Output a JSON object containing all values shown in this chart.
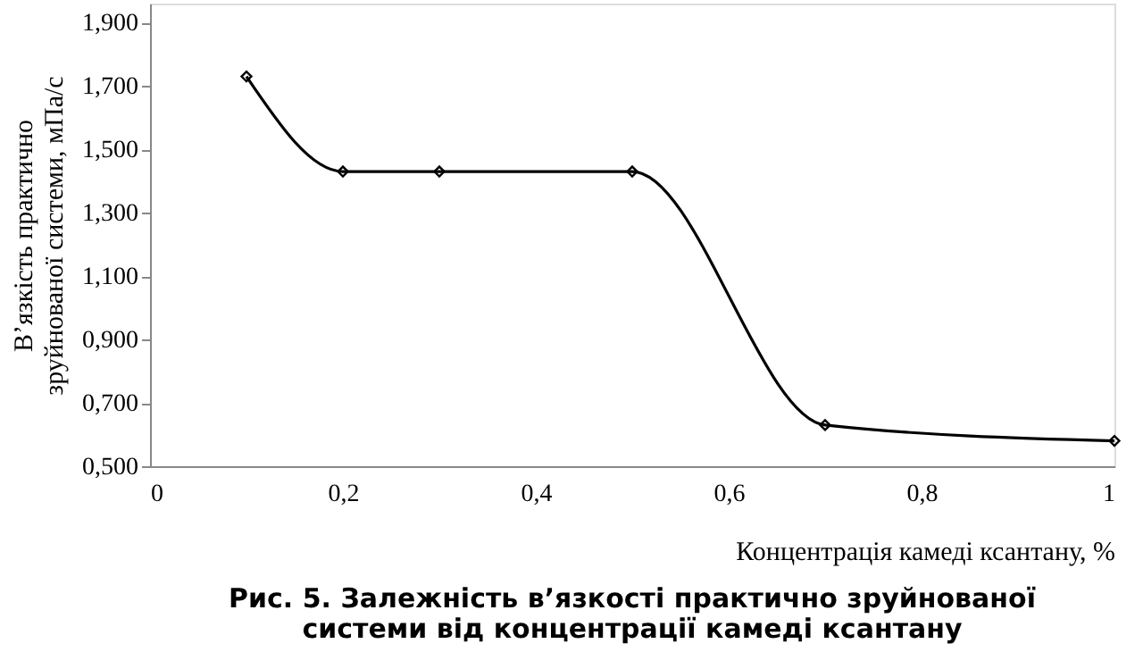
{
  "chart_data": {
    "type": "line",
    "title": "Рис. 5. Залежність в’язкості практично зруйнованої системи від концентрації камеді ксантану",
    "xlabel": "Концентрація камеді ксантану, %",
    "ylabel": "В’язкість практично зруйнованої системи, мПа/с",
    "x": [
      0.1,
      0.2,
      0.3,
      0.5,
      0.7,
      1
    ],
    "series": [
      {
        "color": "#000000",
        "values": [
          1.73,
          1.43,
          1.43,
          1.43,
          0.63,
          0.58
        ]
      }
    ],
    "xlim": [
      0,
      1
    ],
    "xticks": [
      0,
      {
        "value": 0.2,
        "label": "0,2"
      },
      {
        "value": 0.4,
        "label": "0,4"
      },
      {
        "value": 0.6,
        "label": "0,6"
      },
      {
        "value": 0.8,
        "label": "0,8"
      },
      1
    ],
    "ylim": [
      0.5,
      1.96
    ],
    "yticks": [
      {
        "value": 0.5,
        "label": "0,500"
      },
      {
        "value": 0.7,
        "label": "0,700"
      },
      {
        "value": 0.9,
        "label": "0,900"
      },
      {
        "value": 1.1,
        "label": "1,100"
      },
      {
        "value": 1.3,
        "label": "1,300"
      },
      {
        "value": 1.5,
        "label": "1,500"
      },
      {
        "value": 1.7,
        "label": "1,700"
      },
      {
        "value": 1.9,
        "label": "1,900"
      }
    ],
    "marker": "diamond",
    "line_style": "solid",
    "grid": false
  }
}
